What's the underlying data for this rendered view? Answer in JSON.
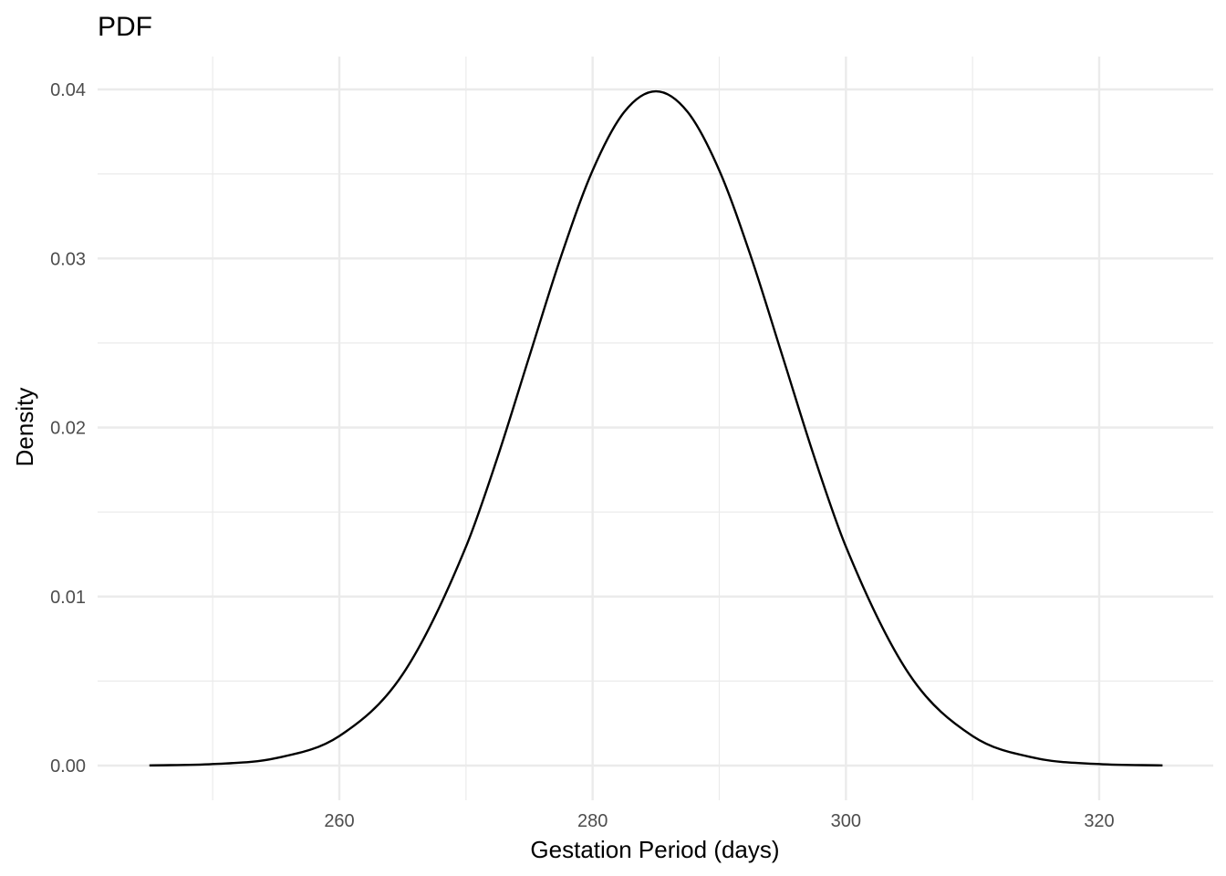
{
  "chart_data": {
    "type": "line",
    "title": "PDF",
    "xlabel": "Gestation Period (days)",
    "ylabel": "Density",
    "xlim": [
      245,
      325
    ],
    "ylim": [
      0,
      0.04
    ],
    "x_ticks": [
      260,
      280,
      300,
      320
    ],
    "x_tick_labels": [
      "260",
      "280",
      "300",
      "320"
    ],
    "y_ticks": [
      0,
      0.01,
      0.02,
      0.03,
      0.04
    ],
    "y_tick_labels": [
      "0.00",
      "0.01",
      "0.02",
      "0.03",
      "0.04"
    ],
    "grid": true,
    "series": [
      {
        "x": [
          245,
          250,
          255,
          260,
          265,
          270,
          272.5,
          275,
          277.5,
          280,
          282.5,
          285,
          287.5,
          290,
          292.5,
          295,
          297.5,
          300,
          305,
          310,
          315,
          320,
          325
        ],
        "y": [
          1e-05,
          9e-05,
          0.00044,
          0.00175,
          0.0054,
          0.01295,
          0.01826,
          0.0242,
          0.03011,
          0.03521,
          0.03867,
          0.03989,
          0.03867,
          0.03521,
          0.03011,
          0.0242,
          0.01826,
          0.01295,
          0.0054,
          0.00175,
          0.00044,
          9e-05,
          1e-05
        ]
      }
    ]
  }
}
